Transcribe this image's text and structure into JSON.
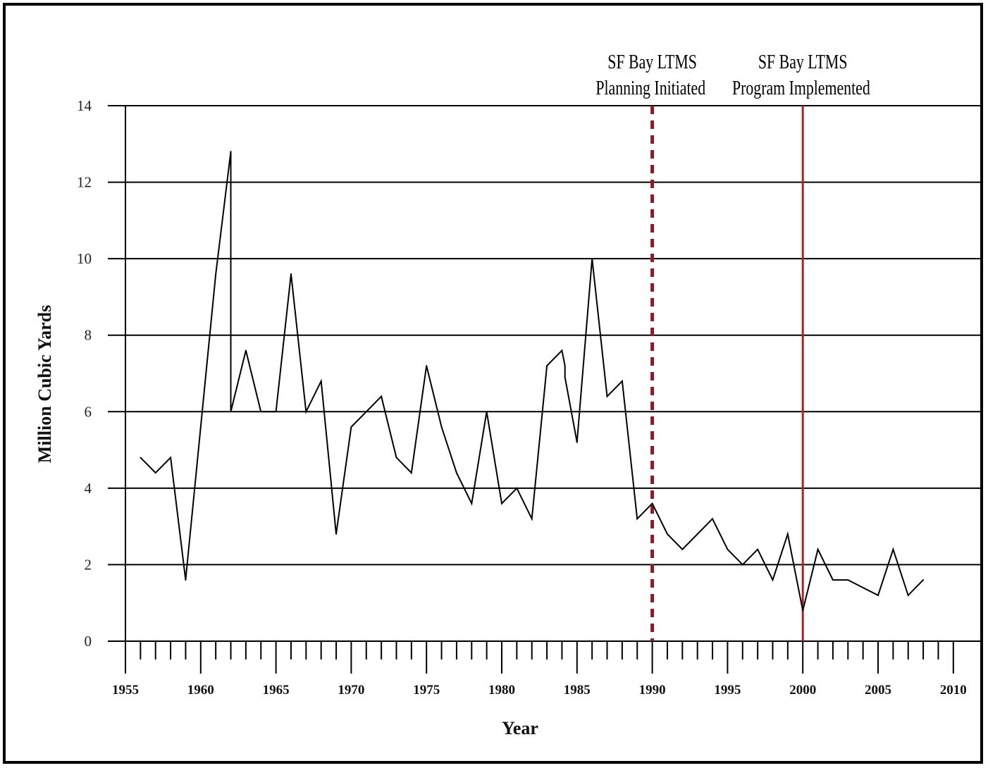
{
  "chart_data": {
    "type": "line",
    "title": "",
    "xlabel": "Year",
    "ylabel": "Million Cubic Yards",
    "xlim": [
      1955,
      2010
    ],
    "ylim": [
      0,
      14
    ],
    "grid": "horizontal",
    "x_ticks": [
      1955,
      1960,
      1965,
      1970,
      1975,
      1980,
      1985,
      1990,
      1995,
      2000,
      2005,
      2010
    ],
    "y_ticks": [
      0,
      2,
      4,
      6,
      8,
      10,
      12,
      14
    ],
    "x_tick_labels": [
      "1955",
      "1960",
      "1965",
      "1970",
      "1975",
      "1980",
      "1985",
      "1990",
      "1995",
      "2000",
      "2005",
      "2010"
    ],
    "y_tick_labels": [
      "0",
      "2",
      "4",
      "6",
      "8",
      "10",
      "12",
      "14"
    ],
    "series": [
      {
        "points": [
          [
            1956,
            4.8
          ],
          [
            1957,
            4.4
          ],
          [
            1958,
            4.8
          ],
          [
            1959,
            1.6
          ],
          [
            1960,
            5.6
          ],
          [
            1961,
            9.6
          ],
          [
            1962,
            12.8
          ],
          [
            1962,
            6.0
          ],
          [
            1963,
            7.6
          ],
          [
            1964,
            6.0
          ],
          [
            1965,
            6.0
          ],
          [
            1966,
            9.6
          ],
          [
            1967,
            6.0
          ],
          [
            1968,
            6.8
          ],
          [
            1969,
            2.8
          ],
          [
            1970,
            5.6
          ],
          [
            1971,
            6.0
          ],
          [
            1972,
            6.4
          ],
          [
            1973,
            4.8
          ],
          [
            1974,
            4.4
          ],
          [
            1975,
            7.2
          ],
          [
            1976,
            5.6
          ],
          [
            1977,
            4.4
          ],
          [
            1978,
            3.6
          ],
          [
            1979,
            6.0
          ],
          [
            1980,
            3.6
          ],
          [
            1981,
            4.0
          ],
          [
            1982,
            3.2
          ],
          [
            1983,
            7.2
          ],
          [
            1984,
            7.6
          ],
          [
            1984.2,
            7.2
          ],
          [
            1984.2,
            6.9
          ],
          [
            1985,
            5.2
          ],
          [
            1986,
            10.0
          ],
          [
            1987,
            6.4
          ],
          [
            1988,
            6.8
          ],
          [
            1989,
            3.2
          ],
          [
            1990,
            3.6
          ],
          [
            1991,
            2.8
          ],
          [
            1992,
            2.4
          ],
          [
            1993,
            2.8
          ],
          [
            1994,
            3.2
          ],
          [
            1995,
            2.4
          ],
          [
            1996,
            2.0
          ],
          [
            1997,
            2.4
          ],
          [
            1998,
            1.6
          ],
          [
            1999,
            2.8
          ],
          [
            2000,
            0.8
          ],
          [
            2001,
            2.4
          ],
          [
            2002,
            1.6
          ],
          [
            2003,
            1.6
          ],
          [
            2004,
            1.4
          ],
          [
            2005,
            1.2
          ],
          [
            2006,
            2.4
          ],
          [
            2007,
            1.2
          ],
          [
            2008,
            1.6
          ]
        ],
        "color": "#000000"
      }
    ],
    "annotations": [
      {
        "x": 1990,
        "style": "dashed",
        "color": "#8b1a2b",
        "line1": "SF Bay LTMS",
        "line2": "Planning Initiated"
      },
      {
        "x": 2000,
        "style": "solid",
        "color": "#b01e2a",
        "line1": "SF Bay LTMS",
        "line2": "Program Implemented"
      }
    ]
  }
}
